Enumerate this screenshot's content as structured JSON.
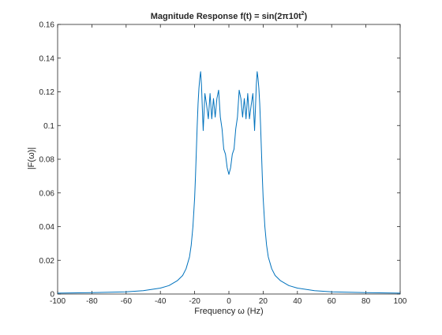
{
  "chart_data": {
    "type": "line",
    "title": "Magnitude Response f(t) = sin(2π10t²)",
    "title_parts": {
      "main": "Magnitude Response f(t) = sin(2π10t",
      "sup": "2",
      "close": ")"
    },
    "xlabel": "Frequency ω (Hz)",
    "ylabel": "|F(ω)|",
    "xlim": [
      -100,
      100
    ],
    "ylim": [
      0,
      0.16
    ],
    "x_ticks": [
      -100,
      -80,
      -60,
      -40,
      -20,
      0,
      20,
      40,
      60,
      80,
      100
    ],
    "y_ticks": [
      0,
      0.02,
      0.04,
      0.06,
      0.08,
      0.1,
      0.12,
      0.14,
      0.16
    ],
    "x_tick_labels": [
      "-100",
      "-80",
      "-60",
      "-40",
      "-20",
      "0",
      "20",
      "40",
      "60",
      "80",
      "100"
    ],
    "y_tick_labels": [
      "0",
      "0.02",
      "0.04",
      "0.06",
      "0.08",
      "0.1",
      "0.12",
      "0.14",
      "0.16"
    ],
    "grid": false,
    "box": true,
    "series": [
      {
        "color": "#0072bd",
        "x": [
          -100,
          -80,
          -60,
          -50,
          -40,
          -35,
          -30,
          -27,
          -25,
          -23,
          -22,
          -21,
          -20,
          -19.5,
          -19,
          -18.5,
          -18,
          -17.5,
          -17,
          -16.5,
          -16,
          -15.5,
          -15,
          -14,
          -13,
          -12,
          -11,
          -10,
          -9,
          -8,
          -7,
          -6,
          -5,
          -4,
          -3,
          -2,
          -1,
          0,
          1,
          2,
          3,
          4,
          5,
          6,
          7,
          8,
          9,
          10,
          11,
          12,
          13,
          14,
          15,
          15.5,
          16,
          16.5,
          17,
          17.5,
          18,
          18.5,
          19,
          19.5,
          20,
          21,
          22,
          23,
          25,
          27,
          30,
          35,
          40,
          50,
          60,
          80,
          100
        ],
        "y": [
          0.0005,
          0.0008,
          0.0013,
          0.002,
          0.0035,
          0.005,
          0.008,
          0.011,
          0.015,
          0.022,
          0.029,
          0.04,
          0.057,
          0.07,
          0.085,
          0.1,
          0.113,
          0.122,
          0.128,
          0.132,
          0.124,
          0.11,
          0.097,
          0.119,
          0.112,
          0.104,
          0.119,
          0.104,
          0.116,
          0.105,
          0.116,
          0.121,
          0.105,
          0.098,
          0.086,
          0.083,
          0.075,
          0.071,
          0.075,
          0.083,
          0.086,
          0.098,
          0.105,
          0.121,
          0.116,
          0.105,
          0.116,
          0.104,
          0.119,
          0.104,
          0.112,
          0.119,
          0.097,
          0.11,
          0.124,
          0.132,
          0.128,
          0.122,
          0.113,
          0.1,
          0.085,
          0.07,
          0.057,
          0.04,
          0.029,
          0.022,
          0.015,
          0.011,
          0.008,
          0.005,
          0.0035,
          0.002,
          0.0013,
          0.0008,
          0.0005
        ]
      }
    ]
  }
}
